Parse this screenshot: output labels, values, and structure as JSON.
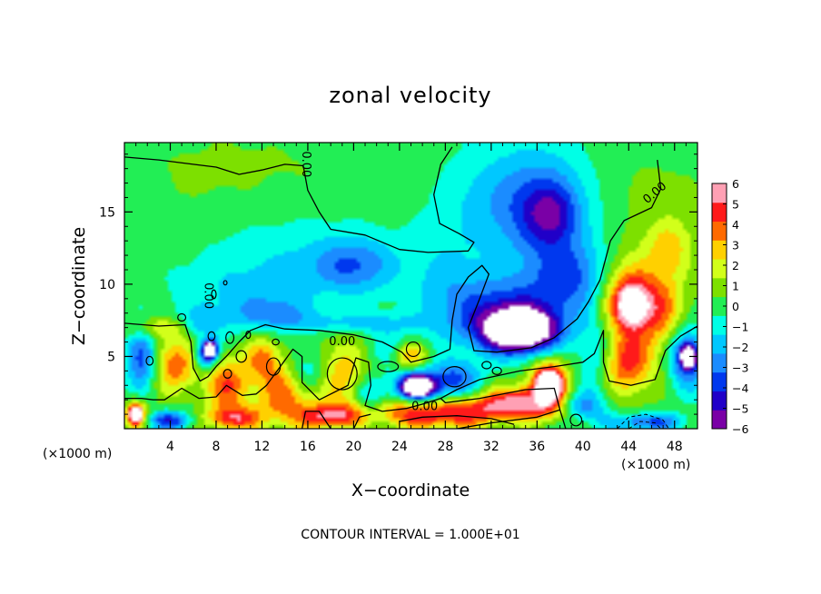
{
  "chart_data": {
    "type": "heatmap",
    "title": "zonal velocity",
    "xlabel": "X−coordinate",
    "ylabel": "Z−coordinate",
    "x_units_left": "(×1000 m)",
    "x_units_right": "(×1000 m)",
    "footer": "CONTOUR INTERVAL = 1.000E+01",
    "xlim": [
      0,
      50
    ],
    "ylim": [
      0,
      19.8
    ],
    "x_ticks": [
      4,
      8,
      12,
      16,
      20,
      24,
      28,
      32,
      36,
      40,
      44,
      48
    ],
    "x_tick_labels": [
      "4",
      "8",
      "12",
      "16",
      "20",
      "24",
      "28",
      "32",
      "36",
      "40",
      "44",
      "48"
    ],
    "y_ticks": [
      5,
      10,
      15
    ],
    "y_tick_labels": [
      "5",
      "10",
      "15"
    ],
    "colorbar": {
      "min": -6,
      "max": 6,
      "ticks": [
        6,
        5,
        4,
        3,
        2,
        1,
        0,
        -1,
        -2,
        -3,
        -4,
        -5,
        -6
      ],
      "tick_labels": [
        "6",
        "5",
        "4",
        "3",
        "2",
        "1",
        "0",
        "−1",
        "−2",
        "−3",
        "−4",
        "−5",
        "−6"
      ],
      "colors_low_to_high": [
        "#7a00a6",
        "#2000c8",
        "#0038ee",
        "#1b8cff",
        "#00c8ff",
        "#00ffe6",
        "#22ee55",
        "#7de000",
        "#d2ff1a",
        "#ffd000",
        "#ff6a00",
        "#ff1a1a",
        "#ffa0b4"
      ]
    },
    "contour_labels": [
      {
        "text": "0.00",
        "x": 15.8,
        "y": 18.3
      },
      {
        "text": "0.00",
        "x": 7.3,
        "y": 9.2
      },
      {
        "text": "0.00",
        "x": 46.3,
        "y": 16.3
      },
      {
        "text": "0.00",
        "x": 19.0,
        "y": 6.0
      },
      {
        "text": "0.00",
        "x": 26.2,
        "y": 1.5
      }
    ],
    "blobs": [
      {
        "x": 9,
        "y": 17,
        "rx": 13,
        "ry": 5,
        "v": 0.6
      },
      {
        "x": 30,
        "y": 17.5,
        "rx": 12,
        "ry": 3,
        "v": 0.3
      },
      {
        "x": 46,
        "y": 14,
        "rx": 7,
        "ry": 6,
        "v": 0.7
      },
      {
        "x": 15,
        "y": 12,
        "rx": 9,
        "ry": 3.5,
        "v": -1.3
      },
      {
        "x": 20,
        "y": 11.3,
        "rx": 3.5,
        "ry": 1.8,
        "v": -2.6
      },
      {
        "x": 10,
        "y": 9,
        "rx": 6,
        "ry": 2.5,
        "v": -1.2
      },
      {
        "x": 31,
        "y": 16,
        "rx": 5,
        "ry": 4,
        "v": -1.4
      },
      {
        "x": 36.5,
        "y": 15.5,
        "rx": 4.5,
        "ry": 4,
        "v": -3.3
      },
      {
        "x": 37.2,
        "y": 14.8,
        "rx": 2.2,
        "ry": 2,
        "v": -2.6
      },
      {
        "x": 39,
        "y": 10.5,
        "rx": 3.5,
        "ry": 2.5,
        "v": -3.2
      },
      {
        "x": 33,
        "y": 8,
        "rx": 5,
        "ry": 2.5,
        "v": -3.8
      },
      {
        "x": 34.5,
        "y": 6.8,
        "rx": 3,
        "ry": 1.4,
        "v": -10
      },
      {
        "x": 28,
        "y": 10,
        "rx": 3,
        "ry": 3,
        "v": -1.2
      },
      {
        "x": 44,
        "y": 9,
        "rx": 2.5,
        "ry": 2.5,
        "v": 4.6
      },
      {
        "x": 44.3,
        "y": 8.5,
        "rx": 1.3,
        "ry": 1.3,
        "v": 5
      },
      {
        "x": 44,
        "y": 4.5,
        "rx": 2.2,
        "ry": 2.2,
        "v": 4.3
      },
      {
        "x": 47,
        "y": 8,
        "rx": 2,
        "ry": 2.5,
        "v": 2.8
      },
      {
        "x": 47.5,
        "y": 12.5,
        "rx": 2,
        "ry": 2,
        "v": 2.2
      },
      {
        "x": 41,
        "y": 5,
        "rx": 1.5,
        "ry": 3,
        "v": -1.6
      },
      {
        "x": 49,
        "y": 5,
        "rx": 1.5,
        "ry": 2,
        "v": -4.5
      },
      {
        "x": 49.2,
        "y": 5,
        "rx": 0.6,
        "ry": 0.7,
        "v": -9
      },
      {
        "x": 37,
        "y": 3,
        "rx": 2,
        "ry": 2,
        "v": 4
      },
      {
        "x": 37,
        "y": 3,
        "rx": 1,
        "ry": 1,
        "v": 9
      },
      {
        "x": 34,
        "y": 2,
        "rx": 3,
        "ry": 1,
        "v": 3.8
      },
      {
        "x": 28,
        "y": 1.3,
        "rx": 9,
        "ry": 0.9,
        "v": 4.3
      },
      {
        "x": 27,
        "y": 0.5,
        "rx": 5,
        "ry": 0.7,
        "v": 2.2
      },
      {
        "x": 26,
        "y": 3,
        "rx": 2.5,
        "ry": 1.3,
        "v": -3.5
      },
      {
        "x": 25.5,
        "y": 2.9,
        "rx": 1.3,
        "ry": 0.7,
        "v": -9
      },
      {
        "x": 29,
        "y": 3.5,
        "rx": 2,
        "ry": 1.2,
        "v": -2.8
      },
      {
        "x": 25,
        "y": 5,
        "rx": 1.5,
        "ry": 1,
        "v": 3.8
      },
      {
        "x": 23,
        "y": 5.5,
        "rx": 2.5,
        "ry": 1.5,
        "v": -1.2
      },
      {
        "x": 19,
        "y": 4,
        "rx": 2.5,
        "ry": 2.5,
        "v": 3
      },
      {
        "x": 14,
        "y": 2.5,
        "rx": 2.5,
        "ry": 2.5,
        "v": 3.8
      },
      {
        "x": 16,
        "y": 4,
        "rx": 2,
        "ry": 1.5,
        "v": -2.6
      },
      {
        "x": 12,
        "y": 5,
        "rx": 1.5,
        "ry": 1.5,
        "v": 3
      },
      {
        "x": 9,
        "y": 3,
        "rx": 2,
        "ry": 2,
        "v": 4
      },
      {
        "x": 4.5,
        "y": 4.5,
        "rx": 2,
        "ry": 2,
        "v": 3.8
      },
      {
        "x": 1.5,
        "y": 5,
        "rx": 1.3,
        "ry": 2,
        "v": -4
      },
      {
        "x": 1,
        "y": 1,
        "rx": 1,
        "ry": 1,
        "v": 4
      },
      {
        "x": 1,
        "y": 1,
        "rx": 0.5,
        "ry": 0.5,
        "v": 9
      },
      {
        "x": 4,
        "y": 0.6,
        "rx": 2,
        "ry": 0.6,
        "v": -4
      },
      {
        "x": 7,
        "y": 5,
        "rx": 1,
        "ry": 1,
        "v": -3.8
      },
      {
        "x": 7.5,
        "y": 5.5,
        "rx": 0.6,
        "ry": 0.6,
        "v": -9
      },
      {
        "x": 9.5,
        "y": 0.7,
        "rx": 2.5,
        "ry": 0.8,
        "v": 4.1
      },
      {
        "x": 18,
        "y": 0.8,
        "rx": 2.5,
        "ry": 0.8,
        "v": 4.1
      },
      {
        "x": 21.5,
        "y": 2,
        "rx": 1.5,
        "ry": 1.5,
        "v": -2.6
      },
      {
        "x": 45.5,
        "y": 0.5,
        "rx": 3,
        "ry": 0.6,
        "v": -3.6
      },
      {
        "x": 40,
        "y": 1.5,
        "rx": 2,
        "ry": 1,
        "v": -3.2
      },
      {
        "x": 13,
        "y": 8,
        "rx": 3,
        "ry": 1,
        "v": -2
      },
      {
        "x": 20,
        "y": 7.3,
        "rx": 6,
        "ry": 0.7,
        "v": -1.8
      },
      {
        "x": 6.5,
        "y": 7.2,
        "rx": 2,
        "ry": 1,
        "v": -2
      },
      {
        "x": 3,
        "y": 7,
        "rx": 3,
        "ry": 0.8,
        "v": 2.2
      }
    ],
    "contours": [
      [
        [
          0,
          18.8
        ],
        [
          3,
          18.6
        ],
        [
          6,
          18.3
        ],
        [
          8,
          18.1
        ],
        [
          10,
          17.6
        ],
        [
          12,
          17.9
        ],
        [
          14,
          18.3
        ],
        [
          15.6,
          18.2
        ],
        [
          16,
          16.5
        ],
        [
          17,
          15
        ],
        [
          18,
          13.8
        ],
        [
          21,
          13.4
        ],
        [
          24,
          12.4
        ],
        [
          26.5,
          12.2
        ],
        [
          30,
          12.3
        ],
        [
          30.5,
          12.9
        ],
        [
          29.2,
          13.5
        ],
        [
          27.5,
          14.2
        ],
        [
          27,
          16.2
        ],
        [
          27.6,
          18.3
        ],
        [
          28.6,
          19.5
        ]
      ],
      [
        [
          46.5,
          18.6
        ],
        [
          46.8,
          16.6
        ],
        [
          46,
          15.3
        ],
        [
          43.6,
          14.4
        ],
        [
          42.4,
          13
        ],
        [
          41.5,
          10.3
        ],
        [
          40.5,
          8.8
        ],
        [
          39.5,
          7.6
        ],
        [
          37.5,
          6.3
        ],
        [
          35.5,
          5.6
        ],
        [
          32.5,
          5.3
        ],
        [
          30.5,
          5.4
        ],
        [
          30,
          7
        ],
        [
          31,
          9
        ],
        [
          31.8,
          10.7
        ],
        [
          31.2,
          11.3
        ],
        [
          30,
          10.5
        ],
        [
          29,
          9.3
        ],
        [
          28.6,
          7.5
        ],
        [
          28.4,
          5.5
        ],
        [
          27,
          5
        ],
        [
          25,
          4.6
        ],
        [
          24.2,
          5.3
        ],
        [
          22.5,
          6
        ],
        [
          20,
          6.5
        ],
        [
          17,
          6.8
        ],
        [
          14,
          6.9
        ],
        [
          12.3,
          7.2
        ],
        [
          11,
          6.8
        ],
        [
          10,
          6
        ],
        [
          9,
          5.1
        ],
        [
          8,
          4.3
        ],
        [
          7.3,
          3.6
        ],
        [
          6.6,
          3.3
        ],
        [
          6,
          4.2
        ],
        [
          5.8,
          6
        ],
        [
          5.3,
          7.2
        ],
        [
          3,
          7.1
        ],
        [
          0,
          7.3
        ]
      ],
      [
        [
          50,
          7.1
        ],
        [
          48.5,
          6.4
        ],
        [
          47.2,
          5.4
        ],
        [
          46.3,
          3.4
        ],
        [
          44.2,
          3
        ],
        [
          42.3,
          3.3
        ],
        [
          41.8,
          4.6
        ],
        [
          41.8,
          6.8
        ],
        [
          41,
          5.2
        ],
        [
          40,
          4.6
        ],
        [
          37.5,
          4.3
        ],
        [
          34.5,
          4
        ],
        [
          31,
          3.4
        ],
        [
          29,
          2.7
        ],
        [
          27.6,
          2.1
        ],
        [
          28,
          1.8
        ],
        [
          31,
          2.1
        ],
        [
          35,
          2.7
        ],
        [
          37.5,
          2.8
        ],
        [
          38,
          1.3
        ],
        [
          38.5,
          0
        ]
      ],
      [
        [
          27.6,
          2.1
        ],
        [
          26,
          1.7
        ],
        [
          24.6,
          1.4
        ],
        [
          22.5,
          1.2
        ],
        [
          21,
          1.6
        ],
        [
          21.5,
          3
        ],
        [
          21.3,
          4.6
        ],
        [
          20.2,
          4.9
        ],
        [
          19.5,
          3
        ],
        [
          17,
          2
        ],
        [
          15.5,
          3.2
        ],
        [
          15.5,
          5
        ],
        [
          14.7,
          5.5
        ],
        [
          13.6,
          4.3
        ],
        [
          12.4,
          3
        ],
        [
          11.5,
          2.4
        ],
        [
          10.3,
          2.3
        ],
        [
          8.9,
          3
        ],
        [
          8,
          2.2
        ],
        [
          6.5,
          2.1
        ],
        [
          5,
          2.8
        ],
        [
          3.5,
          2
        ],
        [
          2.5,
          2
        ],
        [
          1.5,
          2.1
        ],
        [
          0,
          2.1
        ]
      ],
      [
        [
          29,
          0
        ],
        [
          32,
          0.4
        ],
        [
          36,
          0.8
        ],
        [
          38,
          1.3
        ]
      ],
      [
        [
          24,
          0.5
        ],
        [
          26,
          0.8
        ],
        [
          29,
          0.9
        ],
        [
          32,
          0.7
        ],
        [
          34,
          0.3
        ]
      ],
      [
        [
          20,
          0
        ],
        [
          20.5,
          0.8
        ],
        [
          21.5,
          1
        ]
      ],
      [
        [
          15.5,
          0
        ],
        [
          15.8,
          1.2
        ],
        [
          17,
          1.2
        ],
        [
          18,
          0
        ]
      ]
    ],
    "contours_dashed": [
      [
        [
          43,
          0
        ],
        [
          44,
          0.8
        ],
        [
          45.5,
          1
        ],
        [
          47,
          0.6
        ],
        [
          47.5,
          0
        ]
      ],
      [
        [
          44,
          0
        ],
        [
          45,
          0.5
        ],
        [
          46.3,
          0.4
        ],
        [
          46.8,
          0
        ]
      ]
    ],
    "contour_loops": [
      {
        "x": 5,
        "y": 7.7,
        "rx": 0.35,
        "ry": 0.25
      },
      {
        "x": 7.8,
        "y": 9.3,
        "rx": 0.2,
        "ry": 0.3
      },
      {
        "x": 8.8,
        "y": 10.1,
        "rx": 0.15,
        "ry": 0.15
      },
      {
        "x": 7.6,
        "y": 6.4,
        "rx": 0.3,
        "ry": 0.3
      },
      {
        "x": 9.2,
        "y": 6.3,
        "rx": 0.35,
        "ry": 0.4
      },
      {
        "x": 10.8,
        "y": 6.5,
        "rx": 0.2,
        "ry": 0.25
      },
      {
        "x": 13.2,
        "y": 6.0,
        "rx": 0.3,
        "ry": 0.2
      },
      {
        "x": 13.0,
        "y": 4.3,
        "rx": 0.6,
        "ry": 0.6
      },
      {
        "x": 19.0,
        "y": 3.8,
        "rx": 1.3,
        "ry": 1.1
      },
      {
        "x": 28.8,
        "y": 3.6,
        "rx": 1.0,
        "ry": 0.7
      },
      {
        "x": 31.6,
        "y": 4.4,
        "rx": 0.4,
        "ry": 0.25
      },
      {
        "x": 32.5,
        "y": 4.0,
        "rx": 0.4,
        "ry": 0.25
      },
      {
        "x": 25.2,
        "y": 5.5,
        "rx": 0.6,
        "ry": 0.5
      },
      {
        "x": 23.0,
        "y": 4.3,
        "rx": 0.9,
        "ry": 0.35
      },
      {
        "x": 10.2,
        "y": 5.0,
        "rx": 0.45,
        "ry": 0.4
      },
      {
        "x": 9.0,
        "y": 3.8,
        "rx": 0.35,
        "ry": 0.3
      },
      {
        "x": 2.2,
        "y": 4.7,
        "rx": 0.3,
        "ry": 0.3
      },
      {
        "x": 39.4,
        "y": 0.6,
        "rx": 0.5,
        "ry": 0.4
      }
    ]
  }
}
